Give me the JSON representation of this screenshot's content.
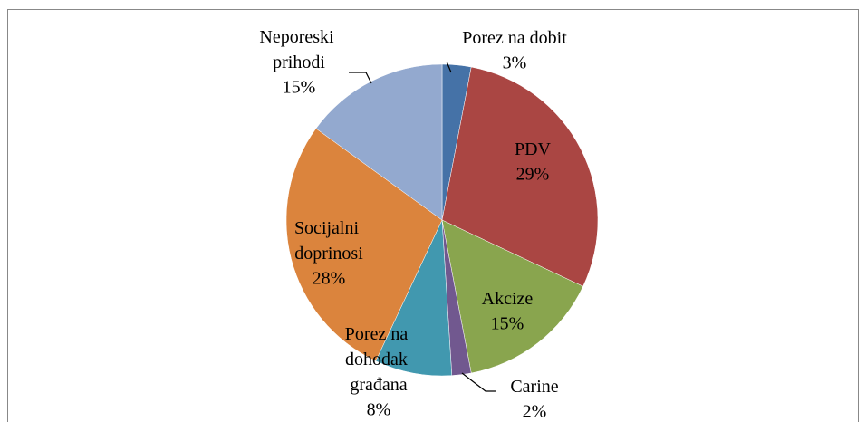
{
  "chart_data": {
    "type": "pie",
    "categories": [
      "Porez na dobit",
      "PDV",
      "Akcize",
      "Carine",
      "Porez na dohodak građana",
      "Socijalni doprinosi",
      "Neporeski prihodi"
    ],
    "values": [
      3,
      29,
      15,
      2,
      8,
      28,
      15
    ],
    "value_labels": [
      "3%",
      "29%",
      "15%",
      "2%",
      "8%",
      "28%",
      "15%"
    ],
    "colors": [
      "#4572a7",
      "#aa4643",
      "#89a54e",
      "#71588f",
      "#4198af",
      "#db843d",
      "#93a9cf"
    ]
  }
}
